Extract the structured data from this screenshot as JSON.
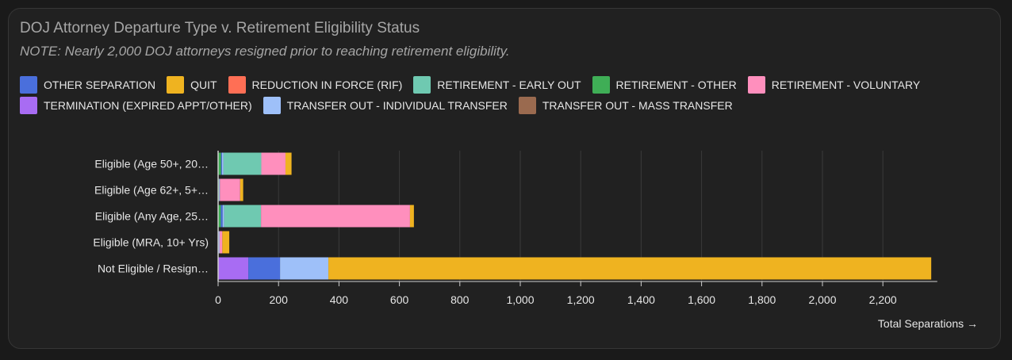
{
  "chart_data": {
    "type": "bar",
    "orientation": "horizontal",
    "stacked": true,
    "title": "DOJ Attorney Departure Type v. Retirement Eligibility Status",
    "subtitle": "NOTE: Nearly 2,000 DOJ attorneys resigned prior to reaching retirement eligibility.",
    "xlabel": "Total Separations →",
    "ylabel": "",
    "xlim": [
      0,
      2380
    ],
    "xticks": [
      0,
      200,
      400,
      600,
      800,
      1000,
      1200,
      1400,
      1600,
      1800,
      2000,
      2200
    ],
    "xtick_labels": [
      "0",
      "200",
      "400",
      "600",
      "800",
      "1,000",
      "1,200",
      "1,400",
      "1,600",
      "1,800",
      "2,000",
      "2,200"
    ],
    "grid": true,
    "legend_position": "top",
    "categories": [
      "Eligible (Age 50+, 20…",
      "Eligible (Age 62+, 5+…",
      "Eligible (Any Age, 25…",
      "Eligible (MRA, 10+ Yrs)",
      "Not Eligible / Resign…"
    ],
    "series": [
      {
        "name": "OTHER SEPARATION",
        "color": "#4a6fdc",
        "values": [
          3,
          0,
          6,
          1,
          105
        ]
      },
      {
        "name": "QUIT",
        "color": "#efb320",
        "values": [
          20,
          10,
          13,
          23,
          1995
        ]
      },
      {
        "name": "REDUCTION IN FORCE (RIF)",
        "color": "#ff6f55",
        "values": [
          0,
          0,
          0,
          0,
          0
        ]
      },
      {
        "name": "RETIREMENT - EARLY OUT",
        "color": "#6fc9b1",
        "values": [
          125,
          0,
          122,
          0,
          0
        ]
      },
      {
        "name": "RETIREMENT - OTHER",
        "color": "#3fae56",
        "values": [
          10,
          3,
          9,
          1,
          0
        ]
      },
      {
        "name": "RETIREMENT - VOLUNTARY",
        "color": "#ff8fbd",
        "values": [
          80,
          67,
          493,
          9,
          0
        ]
      },
      {
        "name": "TERMINATION (EXPIRED APPT/OTHER)",
        "color": "#a86cf3",
        "values": [
          0,
          0,
          0,
          0,
          100
        ]
      },
      {
        "name": "TRANSFER OUT - INDIVIDUAL TRANSFER",
        "color": "#9ec0f9",
        "values": [
          5,
          3,
          5,
          3,
          160
        ]
      },
      {
        "name": "TRANSFER OUT - MASS TRANSFER",
        "color": "#9a6a4f",
        "values": [
          0,
          0,
          0,
          0,
          0
        ]
      }
    ],
    "stack_order": [
      "RETIREMENT - OTHER",
      "TERMINATION (EXPIRED APPT/OTHER)",
      "OTHER SEPARATION",
      "TRANSFER OUT - INDIVIDUAL TRANSFER",
      "RETIREMENT - EARLY OUT",
      "RETIREMENT - VOLUNTARY",
      "QUIT"
    ]
  }
}
